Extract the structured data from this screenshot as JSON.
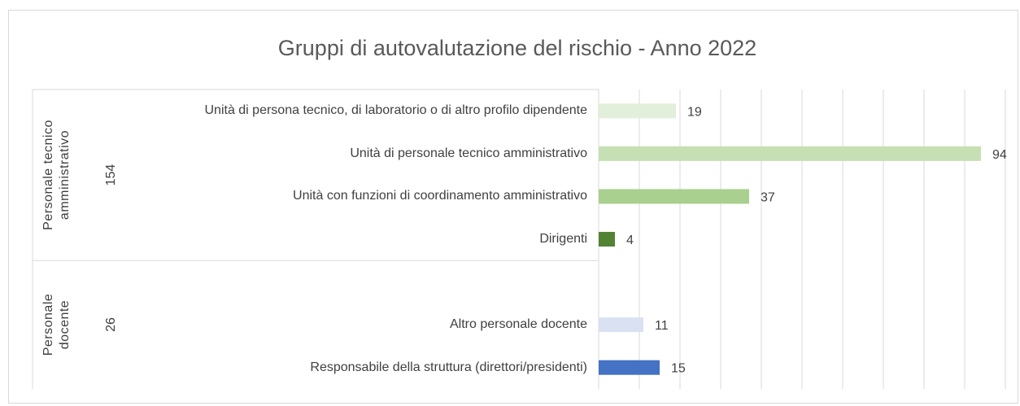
{
  "chart_data": {
    "type": "bar",
    "orientation": "horizontal",
    "title": "Gruppi di autovalutazione del rischio - Anno 2022",
    "xlim": [
      0,
      100
    ],
    "xticks": [
      0,
      10,
      20,
      30,
      40,
      50,
      60,
      70,
      80,
      90,
      100
    ],
    "grid": true,
    "groups": [
      {
        "name": "Personale tecnico amministrativo",
        "total": 154,
        "categories": [
          "Unità di persona tecnico, di laboratorio o di altro profilo dipendente",
          "Unità di personale tecnico amministrativo",
          "Unità con funzioni di coordinamento amministrativo",
          "Dirigenti"
        ],
        "values": [
          19,
          94,
          37,
          4
        ],
        "colors": [
          "#e2efda",
          "#c6e0b4",
          "#a9d08e",
          "#548235"
        ]
      },
      {
        "name": "Personale docente",
        "total": 26,
        "categories": [
          null,
          "Altro personale docente",
          "Responsabile della struttura (direttori/presidenti)"
        ],
        "values": [
          null,
          11,
          15
        ],
        "colors": [
          null,
          "#d9e1f2",
          "#4472c4"
        ]
      }
    ]
  }
}
